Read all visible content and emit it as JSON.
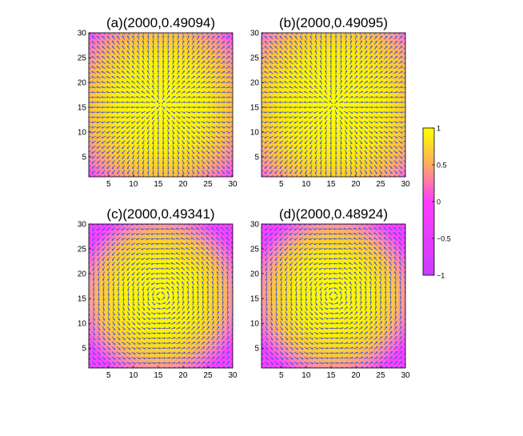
{
  "chart_data": [
    {
      "type": "heatmap",
      "title": "(a)(2000,0.49094)",
      "field": "hedgehog",
      "xlim": [
        1,
        30
      ],
      "ylim": [
        1,
        30
      ],
      "xticks": [
        5,
        10,
        15,
        20,
        25,
        30
      ],
      "yticks": [
        5,
        10,
        15,
        20,
        25,
        30
      ]
    },
    {
      "type": "heatmap",
      "title": "(b)(2000,0.49095)",
      "field": "hedgehog-diagonal",
      "xlim": [
        1,
        30
      ],
      "ylim": [
        1,
        30
      ],
      "xticks": [
        5,
        10,
        15,
        20,
        25,
        30
      ],
      "yticks": [
        5,
        10,
        15,
        20,
        25,
        30
      ]
    },
    {
      "type": "heatmap",
      "title": "(c)(2000,0.49341)",
      "field": "vortex",
      "xlim": [
        1,
        30
      ],
      "ylim": [
        1,
        30
      ],
      "xticks": [
        5,
        10,
        15,
        20,
        25,
        30
      ],
      "yticks": [
        5,
        10,
        15,
        20,
        25,
        30
      ]
    },
    {
      "type": "heatmap",
      "title": "(d)(2000,0.48924)",
      "field": "vortex",
      "xlim": [
        1,
        30
      ],
      "ylim": [
        1,
        30
      ],
      "xticks": [
        5,
        10,
        15,
        20,
        25,
        30
      ],
      "yticks": [
        5,
        10,
        15,
        20,
        25,
        30
      ]
    }
  ],
  "colorbar": {
    "range": [
      -1,
      1
    ],
    "ticks": [
      1,
      0.5,
      0,
      -0.5,
      -1
    ],
    "tick_labels": [
      "1",
      "0.5",
      "0",
      "−0.5",
      "−1"
    ],
    "colors": {
      "low": "#c83cff",
      "mid": "#ff3cff",
      "high": "#ffff00"
    }
  },
  "colors": {
    "arrow": "#3f57d8",
    "axis": "#000000"
  }
}
